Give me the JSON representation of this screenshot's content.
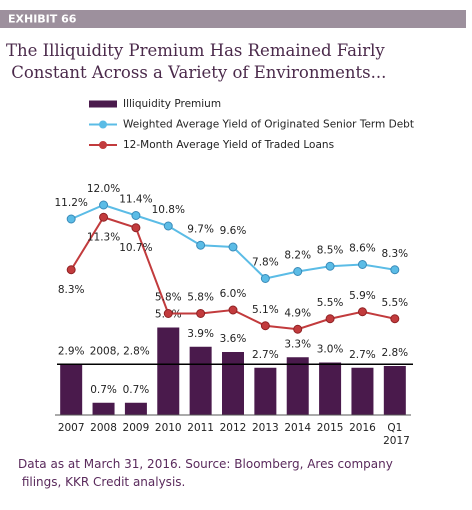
{
  "header": {
    "exhibit": "EXHIBIT 66"
  },
  "chart_data": {
    "type": "bar-line",
    "title": "The Illiquidity Premium Has Remained Fairly Constant Across a Variety of Environments...",
    "categories": [
      "2007",
      "2008",
      "2009",
      "2010",
      "2011",
      "2012",
      "2013",
      "2014",
      "2015",
      "2016",
      "Q1 2017"
    ],
    "ylim": [
      0,
      13.5
    ],
    "reference_line": 2.9,
    "series": [
      {
        "name": "Illiquidity Premium",
        "kind": "bar",
        "color": "#4a1a4c",
        "values": [
          2.9,
          0.7,
          0.7,
          5.0,
          3.9,
          3.6,
          2.7,
          3.3,
          3.0,
          2.7,
          2.8
        ],
        "value_labels": [
          "2.9%",
          "0.7%",
          "0.7%",
          "5.0%",
          "3.9%",
          "3.6%",
          "2.7%",
          "3.3%",
          "3.0%",
          "2.7%",
          "2.8%"
        ]
      },
      {
        "name": "Weighted Average Yield of Originated Senior Term Debt",
        "kind": "line",
        "color": "#5bbce6",
        "values": [
          11.2,
          12.0,
          11.4,
          10.8,
          9.7,
          9.6,
          7.8,
          8.2,
          8.5,
          8.6,
          8.3
        ],
        "value_labels": [
          "11.2%",
          "12.0%",
          "11.4%",
          "10.8%",
          "9.7%",
          "9.6%",
          "7.8%",
          "8.2%",
          "8.5%",
          "8.6%",
          "8.3%"
        ]
      },
      {
        "name": "12-Month Average Yield of Traded Loans",
        "kind": "line",
        "color": "#c23b3d",
        "values": [
          8.3,
          11.3,
          10.7,
          5.8,
          5.8,
          6.0,
          5.1,
          4.9,
          5.5,
          5.9,
          5.5
        ],
        "value_labels": [
          "8.3%",
          "11.3%",
          "10.7%",
          "5.8%",
          "5.8%",
          "6.0%",
          "5.1%",
          "4.9%",
          "5.5%",
          "5.9%",
          "5.5%"
        ]
      }
    ],
    "annotation": "2008, 2.8%",
    "source": "Data as at March 31, 2016. Source: Bloomberg, Ares company filings, KKR Credit analysis."
  }
}
